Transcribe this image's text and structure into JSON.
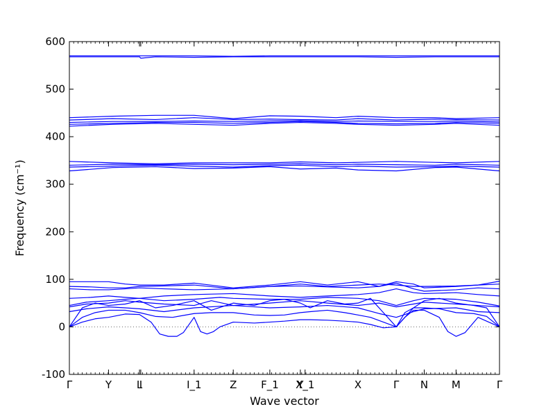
{
  "chart_data": {
    "type": "line",
    "title": "",
    "xlabel": "Wave vector",
    "ylabel": "Frequency (cm⁻¹)",
    "ylim": [
      -100,
      600
    ],
    "yticks": [
      -100,
      0,
      100,
      200,
      300,
      400,
      500,
      600
    ],
    "grid": false,
    "line_color": "#0000ff",
    "zero_line": {
      "y": 0,
      "style": "dotted",
      "color": "#555555"
    },
    "xticks": [
      {
        "label": "Γ",
        "x": 0
      },
      {
        "label": "Y",
        "x": 0.091
      },
      {
        "label": "L",
        "x": 0.163
      },
      {
        "label": "I",
        "x": 0.166
      },
      {
        "label": "I_1",
        "x": 0.29
      },
      {
        "label": "Z",
        "x": 0.381
      },
      {
        "label": "F_1",
        "x": 0.466
      },
      {
        "label": "Y",
        "x": 0.537
      },
      {
        "label": "X_1",
        "x": 0.548
      },
      {
        "label": "X",
        "x": 0.671
      },
      {
        "label": "Γ",
        "x": 0.76
      },
      {
        "label": "N",
        "x": 0.825
      },
      {
        "label": "M",
        "x": 0.899
      },
      {
        "label": "Γ",
        "x": 1
      }
    ],
    "series": [
      {
        "x": [
          0,
          0.03,
          0.06,
          0.091,
          0.13,
          0.163,
          0.19,
          0.21,
          0.23,
          0.25,
          0.265,
          0.29,
          0.305,
          0.32,
          0.335,
          0.35,
          0.381,
          0.43,
          0.466,
          0.5,
          0.537,
          0.56,
          0.6,
          0.64,
          0.671,
          0.7,
          0.73,
          0.76,
          0.78,
          0.8,
          0.825,
          0.86,
          0.88,
          0.899,
          0.92,
          0.95,
          0.98,
          1
        ],
        "y": [
          0,
          10,
          17,
          20,
          27,
          26,
          10,
          -15,
          -20,
          -20,
          -12,
          20,
          -10,
          -15,
          -10,
          0,
          10,
          8,
          10,
          12,
          15,
          15,
          14,
          12,
          10,
          5,
          -2,
          0,
          20,
          35,
          35,
          20,
          -10,
          -20,
          -12,
          20,
          8,
          0
        ]
      },
      {
        "x": [
          0,
          0.03,
          0.06,
          0.091,
          0.13,
          0.163,
          0.2,
          0.24,
          0.29,
          0.33,
          0.381,
          0.43,
          0.466,
          0.5,
          0.537,
          0.56,
          0.6,
          0.64,
          0.671,
          0.7,
          0.73,
          0.76,
          0.78,
          0.8,
          0.825,
          0.86,
          0.899,
          0.94,
          0.97,
          1
        ],
        "y": [
          0,
          20,
          30,
          35,
          35,
          30,
          22,
          20,
          28,
          30,
          30,
          25,
          24,
          25,
          30,
          32,
          35,
          30,
          25,
          20,
          10,
          0,
          30,
          40,
          40,
          38,
          30,
          28,
          22,
          0
        ]
      },
      {
        "x": [
          0,
          0.04,
          0.091,
          0.13,
          0.163,
          0.22,
          0.29,
          0.381,
          0.466,
          0.537,
          0.6,
          0.671,
          0.72,
          0.76,
          0.8,
          0.825,
          0.899,
          0.95,
          1
        ],
        "y": [
          32,
          38,
          42,
          40,
          38,
          32,
          40,
          45,
          40,
          42,
          45,
          40,
          28,
          20,
          32,
          38,
          40,
          32,
          30
        ]
      },
      {
        "x": [
          0,
          0.03,
          0.06,
          0.091,
          0.13,
          0.163,
          0.2,
          0.24,
          0.29,
          0.33,
          0.381,
          0.43,
          0.466,
          0.5,
          0.537,
          0.56,
          0.6,
          0.64,
          0.671,
          0.7,
          0.73,
          0.76,
          0.8,
          0.825,
          0.86,
          0.899,
          0.94,
          0.97,
          1
        ],
        "y": [
          0,
          40,
          50,
          45,
          48,
          55,
          40,
          45,
          55,
          35,
          50,
          45,
          55,
          58,
          50,
          40,
          55,
          48,
          50,
          60,
          30,
          0,
          40,
          55,
          60,
          50,
          45,
          40,
          0
        ]
      },
      {
        "x": [
          0,
          0.04,
          0.091,
          0.13,
          0.163,
          0.22,
          0.29,
          0.33,
          0.381,
          0.466,
          0.537,
          0.6,
          0.671,
          0.72,
          0.76,
          0.8,
          0.825,
          0.899,
          0.95,
          1
        ],
        "y": [
          42,
          48,
          50,
          55,
          52,
          48,
          45,
          55,
          45,
          50,
          55,
          50,
          45,
          50,
          42,
          48,
          52,
          48,
          45,
          42
        ]
      },
      {
        "x": [
          0,
          0.04,
          0.091,
          0.13,
          0.163,
          0.22,
          0.29,
          0.35,
          0.381,
          0.466,
          0.537,
          0.6,
          0.671,
          0.72,
          0.76,
          0.8,
          0.825,
          0.899,
          0.95,
          1
        ],
        "y": [
          45,
          52,
          55,
          58,
          60,
          55,
          58,
          62,
          60,
          58,
          58,
          62,
          60,
          55,
          45,
          55,
          60,
          58,
          52,
          44
        ]
      },
      {
        "x": [
          0,
          0.05,
          0.091,
          0.13,
          0.163,
          0.22,
          0.29,
          0.381,
          0.466,
          0.537,
          0.6,
          0.671,
          0.72,
          0.76,
          0.8,
          0.825,
          0.899,
          0.95,
          1
        ],
        "y": [
          60,
          62,
          65,
          62,
          60,
          65,
          68,
          70,
          65,
          62,
          65,
          68,
          72,
          80,
          72,
          70,
          72,
          68,
          65
        ]
      },
      {
        "x": [
          0,
          0.05,
          0.091,
          0.13,
          0.163,
          0.22,
          0.29,
          0.381,
          0.466,
          0.537,
          0.6,
          0.671,
          0.72,
          0.76,
          0.8,
          0.825,
          0.899,
          0.95,
          1
        ],
        "y": [
          80,
          78,
          78,
          80,
          82,
          80,
          78,
          80,
          85,
          86,
          84,
          82,
          85,
          92,
          80,
          75,
          78,
          82,
          80
        ]
      },
      {
        "x": [
          0,
          0.05,
          0.091,
          0.13,
          0.163,
          0.22,
          0.29,
          0.381,
          0.466,
          0.537,
          0.6,
          0.671,
          0.72,
          0.76,
          0.8,
          0.825,
          0.899,
          0.95,
          1
        ],
        "y": [
          85,
          84,
          82,
          82,
          85,
          86,
          88,
          80,
          85,
          90,
          85,
          88,
          90,
          88,
          85,
          85,
          86,
          88,
          90
        ]
      },
      {
        "x": [
          0,
          0.05,
          0.091,
          0.13,
          0.163,
          0.22,
          0.29,
          0.381,
          0.466,
          0.537,
          0.6,
          0.671,
          0.72,
          0.76,
          0.8,
          0.825,
          0.899,
          0.95,
          1
        ],
        "y": [
          95,
          95,
          95,
          90,
          88,
          88,
          92,
          82,
          88,
          95,
          88,
          95,
          85,
          95,
          90,
          82,
          85,
          88,
          96
        ]
      },
      {
        "x": [
          0,
          0.1,
          0.2,
          0.29,
          0.381,
          0.466,
          0.537,
          0.62,
          0.671,
          0.76,
          0.85,
          0.899,
          1
        ],
        "y": [
          328,
          335,
          337,
          333,
          334,
          337,
          332,
          334,
          330,
          328,
          335,
          336,
          328
        ]
      },
      {
        "x": [
          0,
          0.1,
          0.2,
          0.29,
          0.381,
          0.466,
          0.537,
          0.62,
          0.671,
          0.76,
          0.85,
          0.899,
          1
        ],
        "y": [
          336,
          338,
          340,
          338,
          336,
          339,
          340,
          337,
          338,
          336,
          337,
          338,
          336
        ]
      },
      {
        "x": [
          0,
          0.1,
          0.2,
          0.29,
          0.381,
          0.466,
          0.537,
          0.62,
          0.671,
          0.76,
          0.85,
          0.899,
          1
        ],
        "y": [
          340,
          342,
          341,
          342,
          341,
          342,
          343,
          341,
          342,
          341,
          340,
          342,
          340
        ]
      },
      {
        "x": [
          0,
          0.1,
          0.2,
          0.29,
          0.381,
          0.466,
          0.537,
          0.62,
          0.671,
          0.76,
          0.85,
          0.899,
          1
        ],
        "y": [
          348,
          345,
          343,
          345,
          345,
          345,
          347,
          345,
          346,
          348,
          346,
          345,
          348
        ]
      },
      {
        "x": [
          0,
          0.1,
          0.2,
          0.29,
          0.381,
          0.466,
          0.537,
          0.62,
          0.671,
          0.76,
          0.85,
          0.899,
          1
        ],
        "y": [
          422,
          426,
          428,
          426,
          424,
          428,
          430,
          428,
          426,
          424,
          426,
          428,
          424
        ]
      },
      {
        "x": [
          0,
          0.1,
          0.2,
          0.29,
          0.381,
          0.466,
          0.537,
          0.62,
          0.671,
          0.76,
          0.85,
          0.899,
          1
        ],
        "y": [
          426,
          428,
          430,
          430,
          428,
          430,
          432,
          430,
          428,
          427,
          428,
          430,
          428
        ]
      },
      {
        "x": [
          0,
          0.1,
          0.2,
          0.29,
          0.381,
          0.466,
          0.537,
          0.62,
          0.671,
          0.76,
          0.85,
          0.899,
          1
        ],
        "y": [
          430,
          432,
          432,
          433,
          432,
          433,
          434,
          432,
          433,
          432,
          432,
          433,
          431
        ]
      },
      {
        "x": [
          0,
          0.1,
          0.2,
          0.29,
          0.381,
          0.466,
          0.537,
          0.62,
          0.671,
          0.76,
          0.85,
          0.899,
          1
        ],
        "y": [
          435,
          438,
          436,
          440,
          436,
          437,
          436,
          435,
          438,
          435,
          437,
          436,
          435
        ]
      },
      {
        "x": [
          0,
          0.1,
          0.2,
          0.29,
          0.381,
          0.466,
          0.537,
          0.62,
          0.671,
          0.76,
          0.85,
          0.899,
          1
        ],
        "y": [
          440,
          443,
          445,
          445,
          438,
          444,
          443,
          440,
          443,
          440,
          440,
          438,
          440
        ]
      },
      {
        "x": [
          0,
          0.1,
          0.163,
          0.166,
          0.2,
          0.29,
          0.381,
          0.466,
          0.537,
          0.62,
          0.671,
          0.76,
          0.85,
          0.899,
          1
        ],
        "y": [
          568,
          568,
          568,
          565,
          568,
          567,
          568,
          568,
          568,
          568,
          568,
          567,
          568,
          568,
          568
        ]
      },
      {
        "x": [
          0,
          0.1,
          0.2,
          0.29,
          0.381,
          0.466,
          0.537,
          0.62,
          0.671,
          0.76,
          0.85,
          0.899,
          1
        ],
        "y": [
          570,
          570,
          570,
          570,
          569,
          570,
          570,
          570,
          570,
          570,
          570,
          570,
          570
        ]
      }
    ]
  }
}
